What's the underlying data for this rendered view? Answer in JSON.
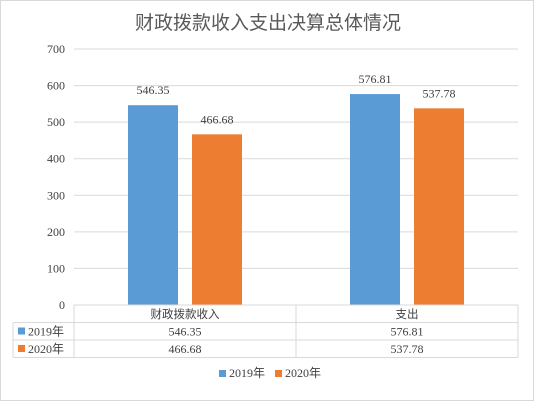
{
  "chart_data": {
    "type": "bar",
    "title": "财政拨款收入支出决算总体情况",
    "categories": [
      "财政拨款收入",
      "支出"
    ],
    "series": [
      {
        "name": "2019年",
        "values": [
          546.35,
          576.81
        ],
        "value_labels": [
          "546.35",
          "576.81"
        ],
        "color": "#5b9bd5"
      },
      {
        "name": "2020年",
        "values": [
          466.68,
          537.78
        ],
        "value_labels": [
          "466.68",
          "537.78"
        ],
        "color": "#ed7d31"
      }
    ],
    "ylim": [
      0,
      700
    ],
    "yticks": [
      0,
      100,
      200,
      300,
      400,
      500,
      600,
      700
    ],
    "grid": true,
    "legend_position": "bottom",
    "data_table": true
  }
}
